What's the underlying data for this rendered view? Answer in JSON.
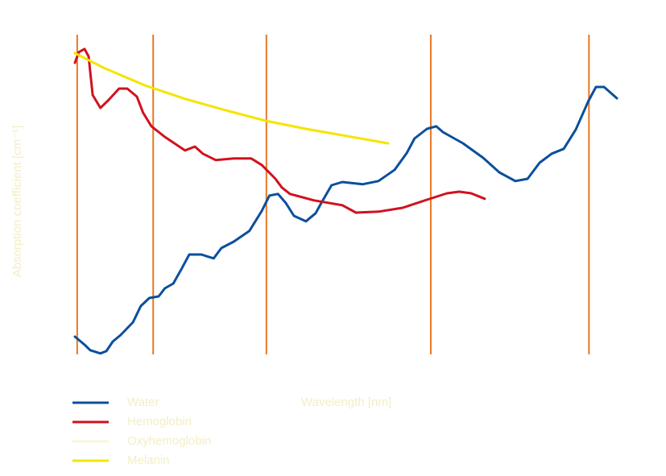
{
  "chart_data": {
    "type": "line",
    "xlabel": "Wavelength [nm]",
    "ylabel": "Absorption coefficient [cm⁻¹]",
    "xlim": [
      400,
      1100
    ],
    "ylim": [
      0,
      100
    ],
    "vlines": [
      404,
      502,
      648,
      860,
      1064
    ],
    "vline_color": "#e87722",
    "series": [
      {
        "name": "Water",
        "color": "#0b4f9c",
        "x": [
          401,
          413.5,
          420.8,
          434,
          441.5,
          450,
          460,
          476,
          486,
          497,
          509,
          517,
          528,
          538,
          548.5,
          564,
          580,
          590,
          606,
          626,
          642,
          652,
          663,
          673,
          683.5,
          699,
          711.5,
          720,
          732,
          746,
          772,
          792.5,
          813.5,
          829,
          839,
          855,
          867,
          875.7,
          901.6,
          927.6,
          948.4,
          969,
          984.8,
          1000.4,
          1016,
          1031.5,
          1047,
          1063,
          1073,
          1083.5,
          1100
        ],
        "values": [
          5.5,
          3,
          1.3,
          0.3,
          1,
          4,
          6,
          10,
          15,
          17.5,
          18,
          20.5,
          22,
          26.3,
          31,
          31,
          29.8,
          33,
          35,
          38.3,
          44.5,
          49.3,
          49.8,
          47,
          43,
          41.3,
          43.8,
          47.5,
          52.5,
          53.5,
          52.8,
          53.8,
          57.3,
          62.5,
          67,
          70,
          70.8,
          69,
          65.5,
          61,
          56.5,
          53.8,
          54.5,
          59.5,
          62.3,
          63.8,
          69.8,
          78.5,
          83,
          83,
          79.5
        ]
      },
      {
        "name": "Hemoglobin",
        "color": "#d0121f",
        "x": [
          401,
          406,
          413.5,
          418.7,
          424,
          434,
          444.7,
          458,
          468.5,
          481,
          489,
          499.7,
          517,
          543,
          555.8,
          566,
          582.8,
          605.6,
          628.5,
          642,
          659.6,
          668,
          678.4,
          709.5,
          746,
          763.5,
          792.6,
          823.7,
          855,
          881,
          896.5,
          912,
          929.6
        ],
        "values": [
          90.5,
          93.8,
          94.8,
          92.5,
          80.5,
          76.5,
          79,
          82.5,
          82.5,
          80,
          75,
          70.8,
          67.5,
          63.3,
          64.5,
          62.3,
          60.3,
          60.8,
          60.8,
          58.8,
          54.5,
          51.8,
          49.8,
          47.8,
          46.3,
          44,
          44.3,
          45.5,
          48,
          50,
          50.5,
          50,
          48.3
        ]
      },
      {
        "name": "Oxyhemoglobin",
        "color": "#fbf6dc",
        "x": [],
        "values": []
      },
      {
        "name": "Melanin",
        "color": "#f5e400",
        "x": [
          401,
          439.5,
          491.4,
          543.3,
          595.2,
          647.2,
          699,
          751,
          805
        ],
        "values": [
          93.5,
          88.8,
          83.5,
          79.3,
          75.8,
          72.5,
          70,
          67.8,
          65.5
        ]
      }
    ]
  }
}
